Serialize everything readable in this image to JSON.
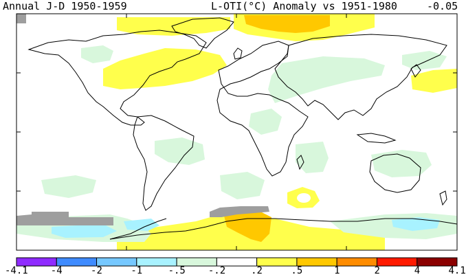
{
  "header": {
    "left": "Annual J-D 1950-1959",
    "middle": "L-OTI(°C) Anomaly vs 1951-1980",
    "right": "-0.05"
  },
  "legend": {
    "ticks": [
      "-4.1",
      "-4",
      "-2",
      "-1",
      "-.5",
      "-.2",
      ".2",
      ".5",
      "1",
      "2",
      "4",
      "4.1"
    ],
    "colors": [
      "#8f2bff",
      "#3f8bff",
      "#76c8ff",
      "#a8f2ff",
      "#d8f7dc",
      "#ffffff",
      "#ffff4c",
      "#ffc800",
      "#ff8c00",
      "#ff1a00",
      "#8b0000"
    ]
  },
  "map": {
    "projection": "equirectangular",
    "land_color": "#ffffff",
    "missing_color": "#9e9e9e"
  }
}
